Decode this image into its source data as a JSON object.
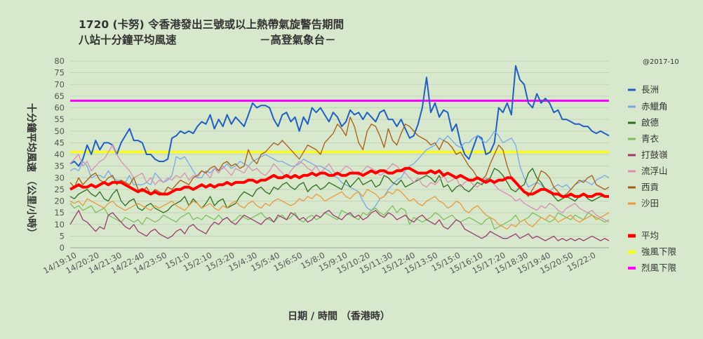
{
  "chart_data": {
    "type": "line",
    "title_line1": "1720 (卡努)   令香港發出三號或以上熱帶氣旋警告期間",
    "title_line2": "八站十分鐘平均風速",
    "source": "－高登氣象台－",
    "credit": "@2017-10",
    "xlabel": "日期  /  時間 （香港時）",
    "ylabel": "十分鐘平均風速 （公里/小時）",
    "ylim": [
      0,
      80
    ],
    "yticks": [
      "0",
      "5",
      "10",
      "15",
      "20",
      "25",
      "30",
      "35",
      "40",
      "45",
      "50",
      "55",
      "60",
      "65",
      "70",
      "75",
      "80"
    ],
    "x_ticks": [
      "14/19:10",
      "14/20:20",
      "14/21:30",
      "14/22:40",
      "14/23:50",
      "15/1:0",
      "15/2:10",
      "15/3:20",
      "15/4:30",
      "15/5:40",
      "15/6:50",
      "15/8:0",
      "15/9:10",
      "15/10:20",
      "15/11:30",
      "15/12:40",
      "15/13:50",
      "15/15:0",
      "15/16:10",
      "15/17:20",
      "15/18:30",
      "15/19:40",
      "15/20:50",
      "15/22:0"
    ],
    "grid": true,
    "legend_position": "right",
    "series": [
      {
        "name": "長洲",
        "color": "#1f5fc4",
        "width": 2,
        "values": [
          36,
          37,
          35,
          38,
          44,
          40,
          46,
          42,
          45,
          45,
          44,
          40,
          45,
          48,
          51,
          46,
          46,
          45,
          40,
          40,
          38,
          37,
          37,
          38,
          47,
          48,
          50,
          49,
          50,
          49,
          52,
          54,
          53,
          57,
          51,
          55,
          52,
          57,
          53,
          56,
          54,
          52,
          57,
          62,
          60,
          61,
          61,
          60,
          55,
          52,
          57,
          58,
          54,
          56,
          50,
          56,
          53,
          60,
          58,
          60,
          57,
          54,
          58,
          56,
          52,
          54,
          59,
          57,
          58,
          55,
          58,
          56,
          54,
          58,
          59,
          55,
          55,
          52,
          55,
          51,
          47,
          48,
          53,
          60,
          73,
          58,
          62,
          56,
          59,
          58,
          50,
          53,
          45,
          40,
          38,
          43,
          48,
          47,
          40,
          41,
          45,
          60,
          58,
          62,
          57,
          78,
          72,
          70,
          62,
          60,
          66,
          62,
          64,
          62,
          58,
          59,
          55,
          55,
          54,
          53,
          53,
          52,
          52,
          50,
          49,
          50,
          49,
          48
        ]
      },
      {
        "name": "赤鱲角",
        "color": "#7aa7e8",
        "width": 1.3,
        "values": [
          33,
          34,
          33,
          37,
          35,
          30,
          31,
          31,
          30,
          33,
          30,
          29,
          29,
          28,
          31,
          27,
          27,
          27,
          28,
          27,
          32,
          30,
          28,
          29,
          31,
          39,
          38,
          39,
          36,
          33,
          30,
          30,
          33,
          32,
          34,
          33,
          34,
          36,
          34,
          35,
          37,
          36,
          35,
          37,
          38,
          39,
          40,
          39,
          38,
          37,
          37,
          36,
          35,
          35,
          36,
          38,
          37,
          36,
          35,
          35,
          34,
          33,
          31,
          30,
          28,
          27,
          26,
          25,
          24,
          20,
          17,
          16,
          18,
          21,
          22,
          25,
          27,
          29,
          30,
          33,
          35,
          36,
          38,
          40,
          42,
          43,
          44,
          47,
          46,
          48,
          46,
          44,
          43,
          45,
          45,
          47,
          48,
          46,
          45,
          47,
          50,
          48,
          45,
          46,
          47,
          44,
          35,
          30,
          26,
          27,
          28,
          27,
          25,
          24,
          26,
          27,
          26,
          27,
          25,
          27,
          28,
          29,
          28,
          27,
          29,
          30,
          31,
          30
        ]
      },
      {
        "name": "啟德",
        "color": "#2a6e1c",
        "width": 1.3,
        "values": [
          22,
          21,
          23,
          24,
          25,
          23,
          22,
          24,
          21,
          20,
          23,
          25,
          20,
          18,
          20,
          21,
          17,
          16,
          18,
          19,
          17,
          16,
          15,
          16,
          18,
          19,
          20,
          22,
          18,
          21,
          19,
          17,
          19,
          22,
          18,
          20,
          21,
          17,
          18,
          19,
          22,
          24,
          23,
          22,
          25,
          26,
          24,
          23,
          26,
          25,
          27,
          28,
          26,
          25,
          27,
          28,
          24,
          26,
          27,
          25,
          26,
          28,
          27,
          26,
          25,
          29,
          26,
          28,
          30,
          27,
          28,
          29,
          26,
          27,
          31,
          30,
          28,
          27,
          29,
          26,
          27,
          28,
          29,
          30,
          31,
          30,
          28,
          31,
          26,
          27,
          24,
          26,
          27,
          25,
          24,
          26,
          28,
          27,
          29,
          30,
          34,
          33,
          31,
          28,
          25,
          24,
          26,
          27,
          32,
          34,
          30,
          28,
          25,
          24,
          22,
          20,
          21,
          22,
          21,
          20,
          22,
          23,
          21,
          20,
          21,
          22,
          22,
          22
        ]
      },
      {
        "name": "青衣",
        "color": "#7cbf5c",
        "width": 1.3,
        "values": [
          19,
          17,
          18,
          16,
          17,
          18,
          15,
          16,
          17,
          14,
          13,
          12,
          11,
          13,
          12,
          11,
          12,
          10,
          13,
          12,
          11,
          12,
          14,
          13,
          12,
          11,
          13,
          14,
          15,
          12,
          13,
          12,
          14,
          13,
          12,
          14,
          12,
          13,
          11,
          12,
          14,
          13,
          12,
          13,
          14,
          15,
          13,
          12,
          11,
          13,
          14,
          12,
          13,
          15,
          12,
          11,
          13,
          14,
          12,
          13,
          15,
          14,
          13,
          12,
          16,
          15,
          14,
          13,
          12,
          15,
          14,
          16,
          17,
          15,
          14,
          16,
          18,
          15,
          17,
          16,
          10,
          13,
          12,
          11,
          12,
          13,
          15,
          14,
          12,
          13,
          14,
          12,
          11,
          12,
          13,
          12,
          11,
          10,
          12,
          13,
          8,
          9,
          10,
          11,
          12,
          14,
          11,
          12,
          13,
          15,
          14,
          13,
          12,
          11,
          12,
          15,
          14,
          13,
          12,
          14,
          13,
          12,
          15,
          14,
          13,
          12,
          11,
          12
        ]
      },
      {
        "name": "打鼓嶺",
        "color": "#9b3b6e",
        "width": 1.3,
        "values": [
          10,
          13,
          16,
          12,
          11,
          9,
          7,
          9,
          8,
          14,
          15,
          13,
          11,
          9,
          8,
          10,
          7,
          6,
          5,
          7,
          8,
          6,
          5,
          4,
          5,
          7,
          8,
          6,
          9,
          10,
          8,
          7,
          6,
          9,
          11,
          10,
          12,
          13,
          11,
          10,
          12,
          14,
          13,
          12,
          11,
          10,
          12,
          13,
          11,
          14,
          13,
          12,
          15,
          14,
          12,
          13,
          11,
          12,
          14,
          13,
          15,
          16,
          14,
          13,
          12,
          14,
          15,
          13,
          14,
          12,
          13,
          15,
          16,
          14,
          13,
          15,
          14,
          12,
          13,
          14,
          12,
          11,
          13,
          14,
          12,
          11,
          10,
          12,
          9,
          8,
          10,
          12,
          11,
          8,
          7,
          6,
          5,
          4,
          5,
          7,
          6,
          5,
          4,
          4,
          5,
          6,
          4,
          5,
          6,
          4,
          5,
          4,
          3,
          4,
          5,
          3,
          4,
          3,
          4,
          3,
          4,
          3,
          4,
          5,
          4,
          3,
          4,
          3
        ]
      },
      {
        "name": "流浮山",
        "color": "#d98fb8",
        "width": 1.3,
        "values": [
          36,
          38,
          40,
          35,
          37,
          33,
          35,
          37,
          38,
          41,
          44,
          40,
          37,
          35,
          33,
          30,
          31,
          32,
          28,
          30,
          27,
          29,
          28,
          30,
          29,
          31,
          30,
          32,
          29,
          31,
          30,
          33,
          32,
          30,
          34,
          32,
          35,
          33,
          31,
          34,
          33,
          32,
          35,
          33,
          34,
          32,
          31,
          33,
          36,
          34,
          32,
          30,
          33,
          35,
          37,
          36,
          34,
          33,
          35,
          32,
          34,
          36,
          33,
          31,
          33,
          35,
          34,
          32,
          31,
          33,
          35,
          34,
          33,
          31,
          32,
          34,
          36,
          35,
          33,
          32,
          30,
          28,
          30,
          27,
          26,
          28,
          27,
          29,
          31,
          28,
          29,
          30,
          26,
          28,
          29,
          27,
          26,
          28,
          30,
          29,
          27,
          25,
          24,
          23,
          22,
          20,
          21,
          19,
          18,
          17,
          16,
          18,
          17,
          19,
          18,
          16,
          15,
          17,
          18,
          19,
          17,
          16,
          15,
          16,
          14,
          13,
          12,
          11
        ]
      },
      {
        "name": "西貢",
        "color": "#a85b12",
        "width": 1.3,
        "values": [
          28,
          26,
          30,
          27,
          29,
          31,
          32,
          29,
          28,
          30,
          31,
          27,
          29,
          28,
          27,
          30,
          25,
          24,
          26,
          23,
          25,
          24,
          23,
          26,
          25,
          27,
          29,
          28,
          27,
          30,
          31,
          33,
          32,
          34,
          35,
          33,
          36,
          37,
          35,
          36,
          34,
          35,
          42,
          38,
          36,
          40,
          41,
          43,
          45,
          44,
          46,
          44,
          42,
          40,
          38,
          41,
          44,
          43,
          42,
          40,
          45,
          47,
          49,
          53,
          51,
          48,
          56,
          52,
          45,
          42,
          50,
          53,
          52,
          48,
          43,
          51,
          46,
          44,
          49,
          53,
          52,
          50,
          48,
          47,
          46,
          44,
          45,
          42,
          46,
          45,
          43,
          40,
          41,
          38,
          35,
          33,
          30,
          29,
          31,
          36,
          40,
          44,
          42,
          35,
          30,
          28,
          26,
          24,
          22,
          25,
          28,
          33,
          32,
          30,
          26,
          24,
          22,
          23,
          25,
          27,
          29,
          28,
          30,
          31,
          27,
          26,
          25,
          26
        ]
      },
      {
        "name": "沙田",
        "color": "#e99a3e",
        "width": 1.3,
        "values": [
          20,
          19,
          20,
          18,
          21,
          20,
          19,
          18,
          17,
          19,
          20,
          18,
          17,
          16,
          17,
          18,
          19,
          18,
          17,
          16,
          18,
          17,
          18,
          19,
          20,
          18,
          17,
          16,
          18,
          20,
          19,
          17,
          18,
          19,
          17,
          16,
          18,
          17,
          19,
          20,
          18,
          17,
          19,
          20,
          18,
          17,
          19,
          18,
          20,
          21,
          20,
          19,
          18,
          19,
          21,
          20,
          22,
          21,
          23,
          22,
          20,
          21,
          22,
          23,
          24,
          22,
          21,
          23,
          24,
          22,
          25,
          24,
          23,
          21,
          22,
          24,
          23,
          25,
          24,
          22,
          20,
          21,
          19,
          18,
          20,
          21,
          22,
          20,
          19,
          17,
          18,
          20,
          19,
          16,
          15,
          17,
          18,
          16,
          14,
          13,
          12,
          10,
          9,
          8,
          10,
          9,
          11,
          12,
          10,
          9,
          11,
          13,
          12,
          14,
          13,
          11,
          12,
          13,
          14,
          12,
          11,
          12,
          13,
          14,
          12,
          13,
          14,
          15
        ]
      },
      {
        "name": "平均",
        "color": "#ff0000",
        "width": 4,
        "values": [
          25,
          26,
          27,
          26,
          26,
          27,
          26,
          27,
          28,
          27,
          28,
          28,
          28,
          27,
          26,
          25,
          24,
          25,
          24,
          23,
          24,
          23,
          23,
          23,
          24,
          25,
          25,
          26,
          26,
          25,
          26,
          27,
          26,
          27,
          26,
          27,
          27,
          28,
          27,
          28,
          28,
          28,
          29,
          29,
          28,
          29,
          29,
          30,
          31,
          30,
          30,
          31,
          30,
          31,
          30,
          31,
          31,
          32,
          31,
          32,
          32,
          31,
          31,
          32,
          31,
          31,
          32,
          32,
          32,
          31,
          32,
          33,
          32,
          33,
          33,
          32,
          32,
          33,
          33,
          34,
          34,
          33,
          32,
          32,
          32,
          33,
          32,
          33,
          31,
          32,
          31,
          30,
          31,
          30,
          29,
          29,
          30,
          29,
          28,
          29,
          28,
          29,
          29,
          30,
          30,
          28,
          26,
          24,
          23,
          23,
          24,
          25,
          25,
          24,
          23,
          23,
          22,
          22,
          23,
          22,
          22,
          23,
          22,
          22,
          23,
          23,
          22,
          22
        ]
      },
      {
        "name": "強風下限",
        "color": "#ffff00",
        "width": 3,
        "values": [
          41
        ]
      },
      {
        "name": "烈風下限",
        "color": "#ff00ff",
        "width": 3,
        "values": [
          63
        ]
      }
    ]
  }
}
